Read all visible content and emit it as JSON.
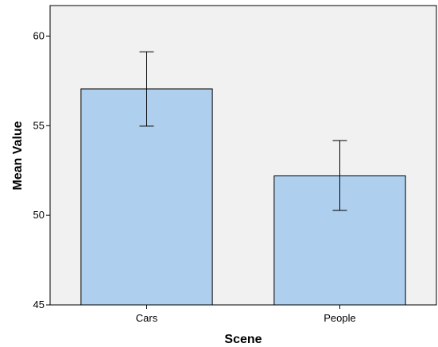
{
  "chart_data": {
    "type": "bar",
    "title": "",
    "xlabel": "Scene",
    "ylabel": "Mean Value",
    "categories": [
      "Cars",
      "People"
    ],
    "values": [
      57.05,
      52.2
    ],
    "error_bars": [
      {
        "low": 54.97,
        "high": 59.12
      },
      {
        "low": 50.27,
        "high": 54.17
      }
    ],
    "ylim": [
      45,
      61.7
    ],
    "yticks": [
      45,
      50,
      55,
      60
    ],
    "ytick_labels": [
      "45",
      "50",
      "55",
      "60"
    ],
    "grid": false,
    "legend": "none"
  },
  "colors": {
    "bar_fill": "#aecfee",
    "plot_background": "#f1f1f1",
    "page_background": "#ffffff",
    "axis": "#000000"
  }
}
